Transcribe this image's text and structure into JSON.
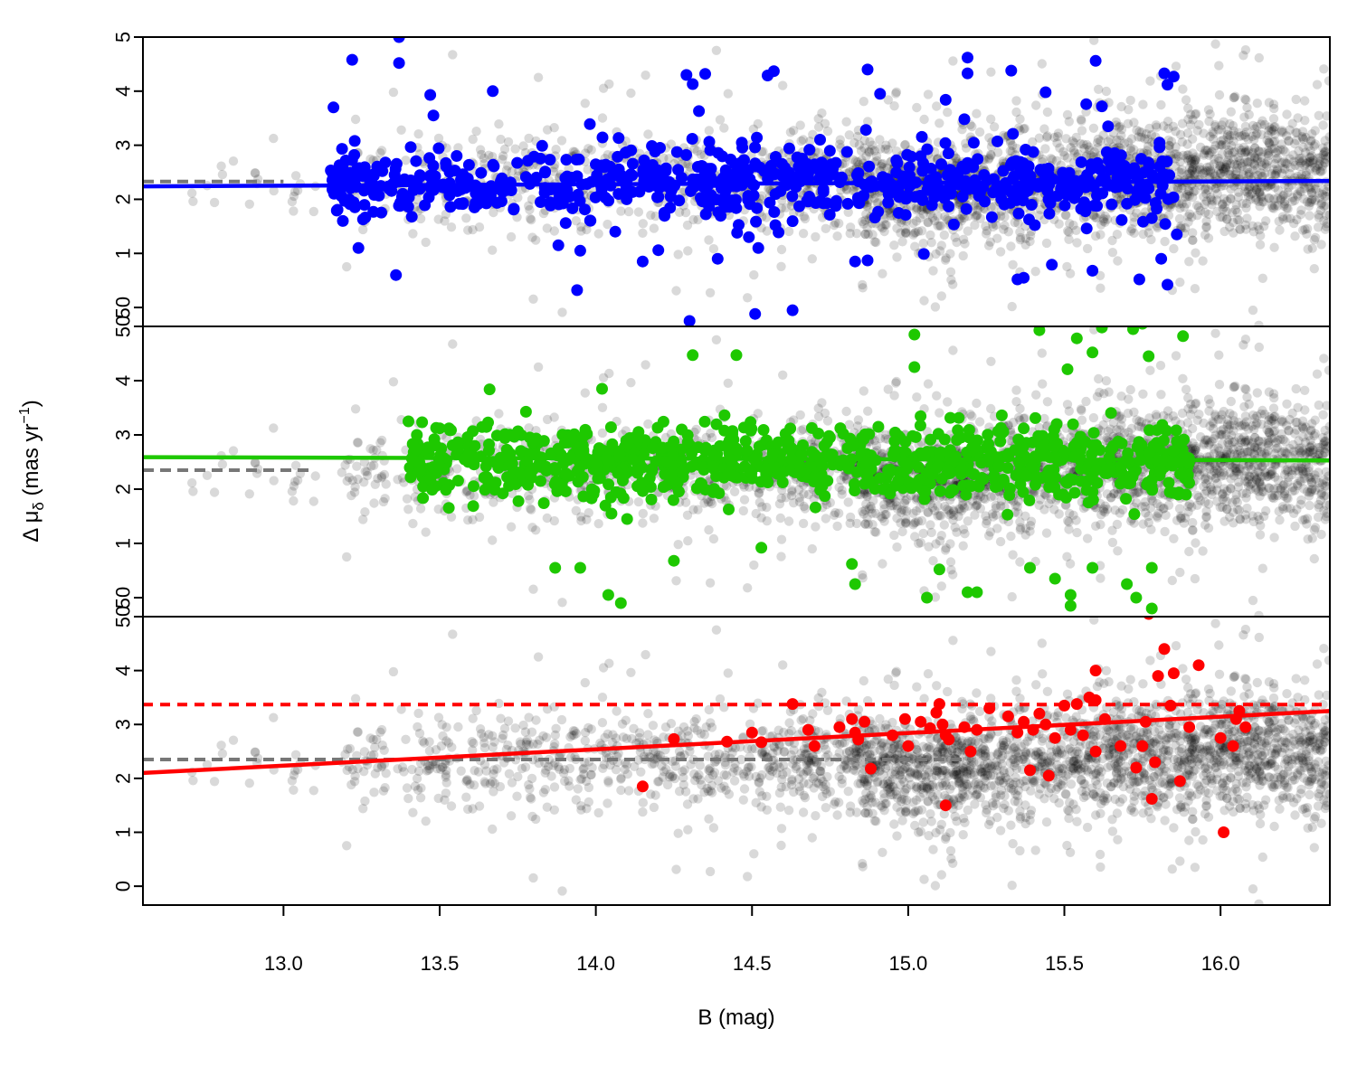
{
  "chart_data": {
    "type": "scatter",
    "layout": "three vertically stacked panels sharing the x axis",
    "xlabel": "B (mag)",
    "ylabel": "Δ μδ (mas yr⁻¹)",
    "ylabel_parts": {
      "prefix": "Δ μ",
      "subscript": "δ",
      "middle": " (mas yr",
      "superscript": "−1",
      "suffix": ")"
    },
    "xlim": [
      12.55,
      16.35
    ],
    "ylim": [
      -0.35,
      5.0
    ],
    "x_ticks": [
      13.0,
      13.5,
      14.0,
      14.5,
      15.0,
      15.5,
      16.0
    ],
    "x_tick_labels": [
      "13.0",
      "13.5",
      "14.0",
      "14.5",
      "15.0",
      "15.5",
      "16.0"
    ],
    "y_ticks": [
      0,
      1,
      2,
      3,
      4,
      5
    ],
    "panel_y_tick_labels": [
      [
        "50",
        "1",
        "2",
        "3",
        "4",
        "5"
      ],
      [
        "50",
        "1",
        "2",
        "3",
        "4",
        "50"
      ],
      [
        "0",
        "1",
        "2",
        "3",
        "4",
        "50"
      ]
    ],
    "grid": false,
    "legend": "none",
    "background_series": {
      "name": "",
      "color": "#000000",
      "opacity": 0.15,
      "description": "dense cloud of field stars, centered near Δμδ ≈ 2.3, densest near B ≈ 14.9–15.1 and B > 15.9",
      "density_bins": [
        {
          "x_range": [
            12.7,
            13.2
          ],
          "count": 25,
          "y_center": 2.3,
          "y_spread": 0.6
        },
        {
          "x_range": [
            13.2,
            13.6
          ],
          "count": 110,
          "y_center": 2.3,
          "y_spread": 0.7
        },
        {
          "x_range": [
            13.6,
            14.0
          ],
          "count": 160,
          "y_center": 2.3,
          "y_spread": 0.75
        },
        {
          "x_range": [
            14.0,
            14.5
          ],
          "count": 220,
          "y_center": 2.3,
          "y_spread": 0.8
        },
        {
          "x_range": [
            14.5,
            14.85
          ],
          "count": 240,
          "y_center": 2.3,
          "y_spread": 0.85
        },
        {
          "x_range": [
            14.85,
            15.2
          ],
          "count": 480,
          "y_center": 2.2,
          "y_spread": 0.9
        },
        {
          "x_range": [
            15.2,
            15.6
          ],
          "count": 420,
          "y_center": 2.3,
          "y_spread": 0.95
        },
        {
          "x_range": [
            15.6,
            15.9
          ],
          "count": 380,
          "y_center": 2.4,
          "y_spread": 1.0
        },
        {
          "x_range": [
            15.9,
            16.35
          ],
          "count": 620,
          "y_center": 2.5,
          "y_spread": 1.05
        }
      ]
    },
    "panels": [
      {
        "name": "",
        "color": "#0000ff",
        "fit_line": {
          "x": [
            12.55,
            16.35
          ],
          "y": [
            2.24,
            2.34
          ],
          "style": "solid"
        },
        "reference_line": {
          "x": [
            12.55,
            13.0
          ],
          "y": 2.33,
          "color": "#777777",
          "style": "dashed"
        },
        "members": {
          "x_range": [
            13.15,
            15.85
          ],
          "count": 720,
          "y_center": 2.3,
          "y_spread": 0.55
        },
        "points": [
          [
            13.37,
            5.0
          ],
          [
            13.22,
            4.58
          ],
          [
            13.37,
            4.52
          ],
          [
            13.47,
            3.93
          ],
          [
            13.48,
            3.55
          ],
          [
            13.16,
            3.7
          ],
          [
            13.67,
            4.0
          ],
          [
            13.19,
            1.6
          ],
          [
            13.24,
            1.1
          ],
          [
            13.36,
            0.6
          ],
          [
            13.88,
            1.15
          ],
          [
            13.95,
            1.05
          ],
          [
            13.94,
            0.32
          ],
          [
            14.15,
            0.85
          ],
          [
            14.2,
            1.06
          ],
          [
            14.39,
            0.9
          ],
          [
            14.29,
            4.3
          ],
          [
            14.31,
            4.13
          ],
          [
            14.35,
            4.32
          ],
          [
            14.33,
            3.63
          ],
          [
            14.55,
            4.29
          ],
          [
            14.57,
            4.37
          ],
          [
            14.3,
            -0.25
          ],
          [
            14.51,
            -0.12
          ],
          [
            14.63,
            -0.05
          ],
          [
            14.87,
            4.4
          ],
          [
            14.91,
            3.95
          ],
          [
            15.12,
            3.84
          ],
          [
            15.18,
            3.48
          ],
          [
            15.19,
            4.62
          ],
          [
            15.19,
            4.33
          ],
          [
            15.33,
            4.38
          ],
          [
            15.44,
            3.98
          ],
          [
            15.57,
            3.76
          ],
          [
            15.62,
            3.72
          ],
          [
            15.64,
            3.35
          ],
          [
            15.6,
            4.56
          ],
          [
            15.82,
            4.33
          ],
          [
            15.83,
            4.12
          ],
          [
            15.85,
            4.27
          ],
          [
            15.86,
            1.35
          ],
          [
            15.83,
            0.42
          ],
          [
            15.81,
            0.9
          ],
          [
            15.74,
            0.52
          ],
          [
            15.59,
            0.68
          ],
          [
            15.46,
            0.79
          ],
          [
            15.37,
            0.55
          ],
          [
            15.35,
            0.52
          ],
          [
            15.05,
            0.99
          ],
          [
            14.83,
            0.85
          ],
          [
            14.87,
            0.87
          ],
          [
            14.49,
            1.3
          ],
          [
            14.52,
            1.1
          ]
        ]
      },
      {
        "name": "",
        "color": "#1ec800",
        "fit_line": {
          "x": [
            12.55,
            16.35
          ],
          "y": [
            2.59,
            2.53
          ],
          "style": "solid"
        },
        "reference_line": {
          "x": [
            12.55,
            13.1
          ],
          "y": 2.35,
          "color": "#777777",
          "style": "dashed"
        },
        "members": {
          "x_range": [
            13.4,
            15.9
          ],
          "count": 900,
          "y_center": 2.5,
          "y_spread": 0.55
        },
        "points": [
          [
            14.31,
            4.47
          ],
          [
            14.45,
            4.47
          ],
          [
            14.02,
            3.85
          ],
          [
            13.66,
            3.84
          ],
          [
            15.02,
            4.25
          ],
          [
            15.02,
            4.85
          ],
          [
            15.42,
            4.93
          ],
          [
            15.54,
            4.78
          ],
          [
            15.62,
            4.98
          ],
          [
            15.72,
            4.95
          ],
          [
            15.75,
            5.05
          ],
          [
            15.88,
            4.82
          ],
          [
            15.59,
            4.52
          ],
          [
            15.51,
            4.21
          ],
          [
            15.77,
            4.45
          ],
          [
            13.87,
            0.55
          ],
          [
            13.95,
            0.55
          ],
          [
            14.04,
            0.05
          ],
          [
            14.08,
            -0.1
          ],
          [
            14.25,
            0.68
          ],
          [
            14.53,
            0.92
          ],
          [
            15.06,
            0.0
          ],
          [
            15.1,
            0.52
          ],
          [
            15.19,
            0.1
          ],
          [
            15.22,
            0.1
          ],
          [
            15.39,
            0.55
          ],
          [
            15.47,
            0.35
          ],
          [
            15.52,
            0.05
          ],
          [
            15.52,
            -0.15
          ],
          [
            15.59,
            0.55
          ],
          [
            15.7,
            0.25
          ],
          [
            15.78,
            0.55
          ],
          [
            15.73,
            0.0
          ],
          [
            15.78,
            -0.2
          ],
          [
            14.82,
            0.62
          ],
          [
            14.83,
            0.25
          ],
          [
            13.4,
            3.25
          ],
          [
            14.1,
            1.45
          ],
          [
            14.05,
            1.55
          ]
        ]
      },
      {
        "name": "",
        "color": "#ff0000",
        "fit_line": {
          "x": [
            12.55,
            16.35
          ],
          "y": [
            2.1,
            3.25
          ],
          "style": "solid"
        },
        "dotted_line": {
          "x": [
            12.55,
            16.35
          ],
          "y": 3.37,
          "color": "#ff0000",
          "style": "dashed"
        },
        "reference_line": {
          "x": [
            12.55,
            15.2
          ],
          "y": 2.35,
          "color": "#777777",
          "style": "dashed"
        },
        "points": [
          [
            14.15,
            1.85
          ],
          [
            14.25,
            2.73
          ],
          [
            14.42,
            2.68
          ],
          [
            14.5,
            2.85
          ],
          [
            14.53,
            2.67
          ],
          [
            14.63,
            3.38
          ],
          [
            14.68,
            2.9
          ],
          [
            14.7,
            2.6
          ],
          [
            14.78,
            2.95
          ],
          [
            14.82,
            3.1
          ],
          [
            14.83,
            2.85
          ],
          [
            14.84,
            2.72
          ],
          [
            14.86,
            3.05
          ],
          [
            14.88,
            2.18
          ],
          [
            14.95,
            2.8
          ],
          [
            14.99,
            3.1
          ],
          [
            15.0,
            2.6
          ],
          [
            15.04,
            3.05
          ],
          [
            15.07,
            2.93
          ],
          [
            15.09,
            3.22
          ],
          [
            15.1,
            3.38
          ],
          [
            15.11,
            3.0
          ],
          [
            15.12,
            2.8
          ],
          [
            15.13,
            2.72
          ],
          [
            15.12,
            1.5
          ],
          [
            15.18,
            2.95
          ],
          [
            15.2,
            2.5
          ],
          [
            15.22,
            2.9
          ],
          [
            15.26,
            3.3
          ],
          [
            15.32,
            3.15
          ],
          [
            15.35,
            2.85
          ],
          [
            15.37,
            3.05
          ],
          [
            15.39,
            2.15
          ],
          [
            15.4,
            2.9
          ],
          [
            15.42,
            3.2
          ],
          [
            15.44,
            3.0
          ],
          [
            15.45,
            2.05
          ],
          [
            15.47,
            2.75
          ],
          [
            15.5,
            3.35
          ],
          [
            15.52,
            2.9
          ],
          [
            15.54,
            3.38
          ],
          [
            15.56,
            2.8
          ],
          [
            15.58,
            3.5
          ],
          [
            15.6,
            3.45
          ],
          [
            15.6,
            4.0
          ],
          [
            15.63,
            3.1
          ],
          [
            15.68,
            2.6
          ],
          [
            15.73,
            2.2
          ],
          [
            15.75,
            2.6
          ],
          [
            15.76,
            3.05
          ],
          [
            15.77,
            5.05
          ],
          [
            15.78,
            1.62
          ],
          [
            15.79,
            2.3
          ],
          [
            15.8,
            3.9
          ],
          [
            15.82,
            4.4
          ],
          [
            15.84,
            3.35
          ],
          [
            15.85,
            3.95
          ],
          [
            15.87,
            1.95
          ],
          [
            15.9,
            2.95
          ],
          [
            15.93,
            4.1
          ],
          [
            16.0,
            2.75
          ],
          [
            16.01,
            1.0
          ],
          [
            16.05,
            3.1
          ],
          [
            16.06,
            3.25
          ],
          [
            16.08,
            2.95
          ],
          [
            16.04,
            2.6
          ],
          [
            15.6,
            2.5
          ]
        ]
      }
    ]
  }
}
